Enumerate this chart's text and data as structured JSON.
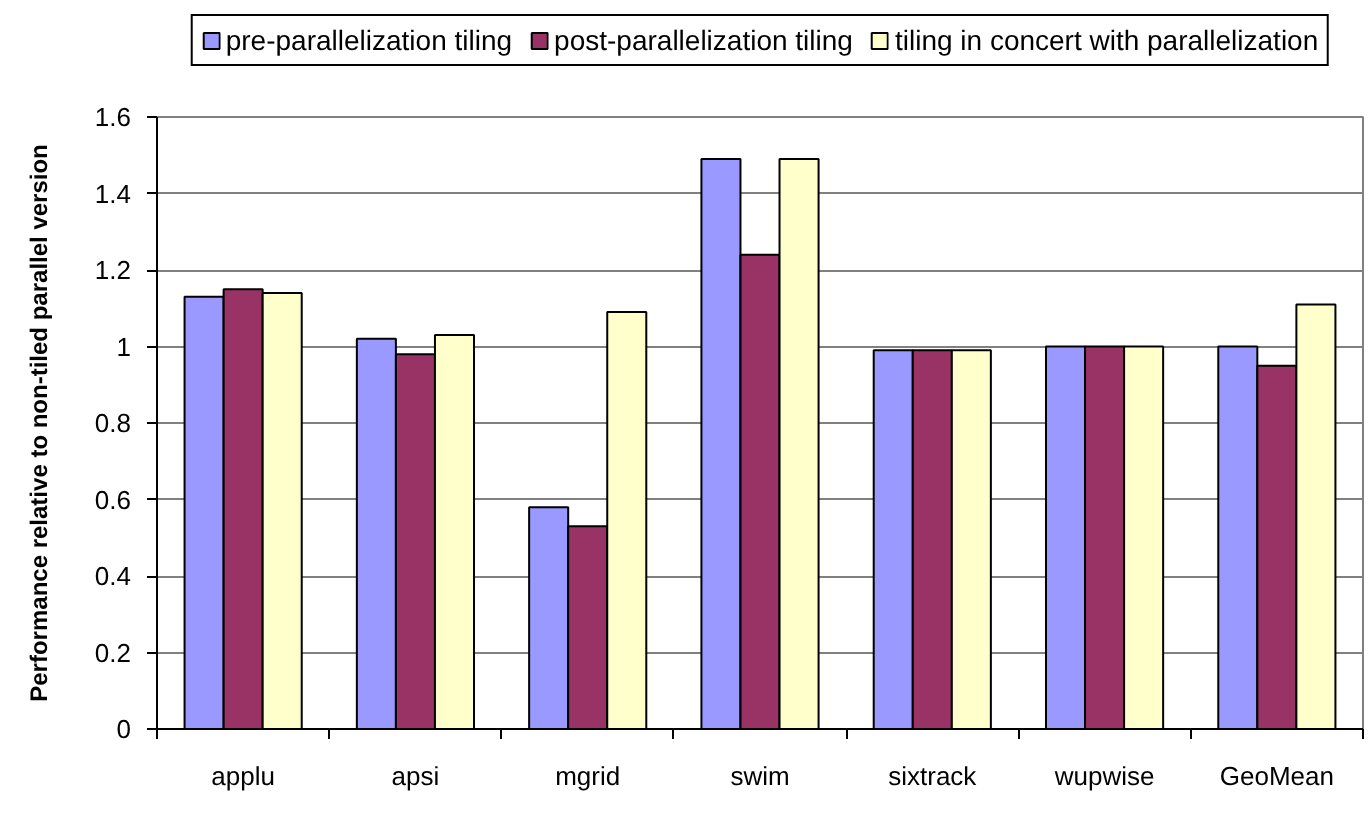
{
  "chart_data": {
    "type": "bar",
    "ylabel": "Performance relative to non-tiled parallel version",
    "categories": [
      "applu",
      "apsi",
      "mgrid",
      "swim",
      "sixtrack",
      "wupwise",
      "GeoMean"
    ],
    "series": [
      {
        "name": "pre-parallelization tiling",
        "color": "#9999ff",
        "values": [
          1.13,
          1.02,
          0.58,
          1.49,
          0.99,
          1.0,
          1.0
        ]
      },
      {
        "name": "post-parallelization tiling",
        "color": "#993366",
        "values": [
          1.15,
          0.98,
          0.53,
          1.24,
          0.99,
          1.0,
          0.95
        ]
      },
      {
        "name": "tiling in concert with parallelization",
        "color": "#ffffcc",
        "values": [
          1.14,
          1.03,
          1.09,
          1.49,
          0.99,
          1.0,
          1.11
        ]
      }
    ],
    "ylim": [
      0,
      1.6
    ],
    "yticks": [
      0,
      0.2,
      0.4,
      0.6,
      0.8,
      1,
      1.2,
      1.4,
      1.6
    ],
    "grid": "y",
    "legend": "top"
  }
}
